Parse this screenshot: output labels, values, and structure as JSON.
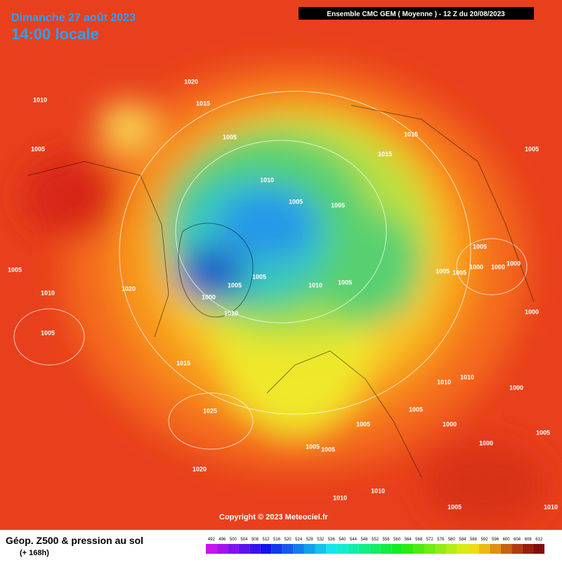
{
  "header": {
    "date": "Dimanche 27 août 2023",
    "time": "14:00 locale",
    "run": "Ensemble CMC GEM  ( Moyenne )  -  12 Z du 20/08/2023"
  },
  "isobar_labels": [
    "1020",
    "1010",
    "1015",
    "1005",
    "1005",
    "1015",
    "1015",
    "1005",
    "1010",
    "1005",
    "1005",
    "1005",
    "1005",
    "1005",
    "1005",
    "1000",
    "1000",
    "1000",
    "1010",
    "1020",
    "1005",
    "1005",
    "1010",
    "1005",
    "1000",
    "1010",
    "1000",
    "1005",
    "1015",
    "1010",
    "1010",
    "1000",
    "1005",
    "1025",
    "1005",
    "1000",
    "1005",
    "1000",
    "1005",
    "1005",
    "1020",
    "1010",
    "1010",
    "1005",
    "1010"
  ],
  "copyright": "Copyright © 2023 Meteociel.fr",
  "footer": {
    "title": "Géop. Z500 & pression au sol",
    "subtitle": "(+ 168h)"
  },
  "legend": {
    "values": [
      492,
      496,
      500,
      504,
      508,
      512,
      516,
      520,
      524,
      528,
      532,
      536,
      540,
      544,
      548,
      552,
      556,
      560,
      564,
      568,
      572,
      576,
      580,
      584,
      588,
      592,
      596,
      600,
      604,
      608,
      612
    ]
  }
}
